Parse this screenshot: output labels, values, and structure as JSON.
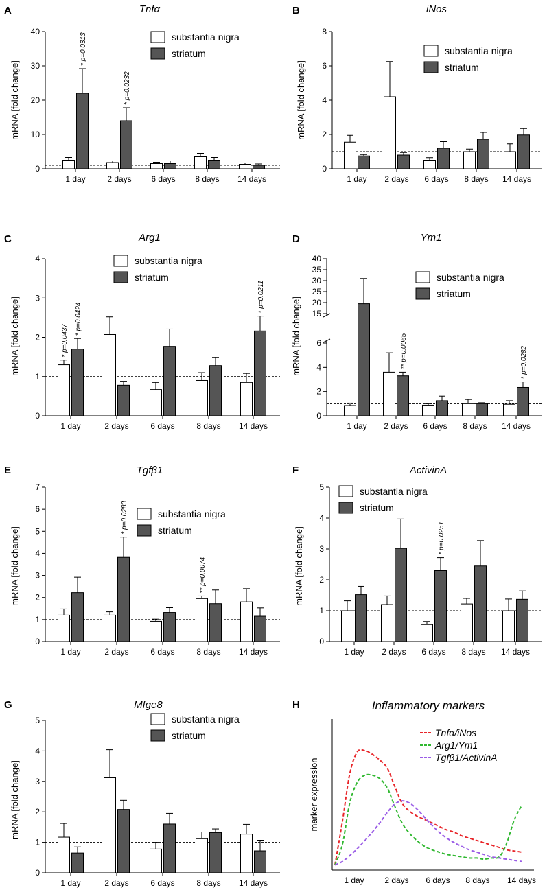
{
  "colors": {
    "sn": "#ffffff",
    "st": "#555555",
    "edge": "#000000"
  },
  "curve_colors": [
    "#e8262a",
    "#30b830",
    "#9a5ce6"
  ],
  "chart_data": [
    {
      "id": "A",
      "type": "bar",
      "title": "Tnfα",
      "ylabel": "mRNA [fold change]",
      "categories": [
        "1 day",
        "2 days",
        "6 days",
        "8 days",
        "14 days"
      ],
      "ylim": [
        0,
        40
      ],
      "yticks": [
        "0",
        "10",
        "20",
        "30",
        "40"
      ],
      "reference": 1,
      "series": [
        {
          "name": "substantia nigra",
          "values": [
            2.5,
            1.8,
            1.5,
            3.5,
            1.3
          ],
          "errors": [
            0.8,
            0.5,
            0.4,
            1.0,
            0.4
          ]
        },
        {
          "name": "striatum",
          "values": [
            22,
            14,
            1.5,
            2.5,
            1.0
          ],
          "errors": [
            7.2,
            3.8,
            0.8,
            0.8,
            0.4
          ]
        }
      ],
      "annotations": [
        {
          "label": "* p=0.0313",
          "category": 0,
          "series": 1
        },
        {
          "label": "* p=0.0232",
          "category": 1,
          "series": 1
        }
      ]
    },
    {
      "id": "B",
      "type": "bar",
      "title": "iNos",
      "ylabel": "mRNA [fold change]",
      "categories": [
        "1 day",
        "2 days",
        "6 days",
        "8 days",
        "14 days"
      ],
      "ylim": [
        0,
        8
      ],
      "yticks": [
        "0",
        "2",
        "4",
        "6",
        "8"
      ],
      "reference": 1,
      "series": [
        {
          "name": "substantia nigra",
          "values": [
            1.55,
            4.2,
            0.5,
            1.0,
            1.0
          ],
          "errors": [
            0.4,
            2.05,
            0.15,
            0.15,
            0.45
          ]
        },
        {
          "name": "striatum",
          "values": [
            0.75,
            0.8,
            1.2,
            1.72,
            1.97
          ],
          "errors": [
            0.08,
            0.15,
            0.38,
            0.4,
            0.38
          ]
        }
      ],
      "annotations": []
    },
    {
      "id": "C",
      "type": "bar",
      "title": "Arg1",
      "ylabel": "mRNA [fold change]",
      "categories": [
        "1 day",
        "2 days",
        "6 days",
        "8 days",
        "14 days"
      ],
      "ylim": [
        0,
        4
      ],
      "yticks": [
        "0",
        "1",
        "2",
        "3",
        "4"
      ],
      "reference": 1,
      "series": [
        {
          "name": "substantia nigra",
          "values": [
            1.3,
            2.07,
            0.67,
            0.9,
            0.85
          ],
          "errors": [
            0.12,
            0.45,
            0.18,
            0.2,
            0.23
          ]
        },
        {
          "name": "striatum",
          "values": [
            1.7,
            0.78,
            1.77,
            1.28,
            2.16
          ],
          "errors": [
            0.27,
            0.1,
            0.44,
            0.2,
            0.38
          ]
        }
      ],
      "annotations": [
        {
          "label": "* p=0.0437",
          "category": 0,
          "series": 0
        },
        {
          "label": "* p=0.0424",
          "category": 0,
          "series": 1
        },
        {
          "label": "* p=0.0211",
          "category": 4,
          "series": 1
        }
      ]
    },
    {
      "id": "D",
      "type": "bar",
      "title": "Ym1",
      "ylabel": "mRNA [fold change]",
      "broken_axis": true,
      "categories": [
        "1 day",
        "2 days",
        "6 days",
        "8 days",
        "14 days"
      ],
      "ylim": [
        0,
        40
      ],
      "yticks": [
        "0",
        "2",
        "4",
        "6",
        "15",
        "20",
        "25",
        "30",
        "35",
        "40"
      ],
      "reference": 1,
      "series": [
        {
          "name": "substantia nigra",
          "values": [
            0.85,
            3.6,
            0.88,
            1.0,
            0.95
          ],
          "errors": [
            0.2,
            1.6,
            0.12,
            0.35,
            0.3
          ]
        },
        {
          "name": "striatum",
          "values": [
            19.5,
            3.3,
            1.25,
            1.0,
            2.35
          ],
          "errors": [
            11.5,
            0.3,
            0.38,
            0.08,
            0.45
          ]
        }
      ],
      "annotations": [
        {
          "label": "** p=0.0065",
          "category": 1,
          "series": 1
        },
        {
          "label": "* p=0.0282",
          "category": 4,
          "series": 1
        }
      ]
    },
    {
      "id": "E",
      "type": "bar",
      "title": "Tgfβ1",
      "ylabel": "mRNA [fold change]",
      "categories": [
        "1 day",
        "2 days",
        "6 days",
        "8 days",
        "14 days"
      ],
      "ylim": [
        0,
        7
      ],
      "yticks": [
        "0",
        "1",
        "2",
        "3",
        "4",
        "5",
        "6",
        "7"
      ],
      "reference": 1,
      "series": [
        {
          "name": "substantia nigra",
          "values": [
            1.2,
            1.2,
            0.92,
            1.95,
            1.8
          ],
          "errors": [
            0.28,
            0.15,
            0.1,
            0.12,
            0.6
          ]
        },
        {
          "name": "striatum",
          "values": [
            2.22,
            3.82,
            1.32,
            1.72,
            1.15
          ],
          "errors": [
            0.7,
            0.92,
            0.22,
            0.62,
            0.38
          ]
        }
      ],
      "annotations": [
        {
          "label": "* p=0.0283",
          "category": 1,
          "series": 1
        },
        {
          "label": "** p=0.0074",
          "category": 3,
          "series": 0
        }
      ]
    },
    {
      "id": "F",
      "type": "bar",
      "title": "ActivinA",
      "ylabel": "mRNA [fold change]",
      "categories": [
        "1 day",
        "2 days",
        "6 days",
        "8 days",
        "14 days"
      ],
      "ylim": [
        0,
        5
      ],
      "yticks": [
        "0",
        "1",
        "2",
        "3",
        "4",
        "5"
      ],
      "reference": 1,
      "series": [
        {
          "name": "substantia nigra",
          "values": [
            1.0,
            1.2,
            0.55,
            1.22,
            1.0
          ],
          "errors": [
            0.32,
            0.28,
            0.1,
            0.18,
            0.38
          ]
        },
        {
          "name": "striatum",
          "values": [
            1.52,
            3.02,
            2.3,
            2.45,
            1.37
          ],
          "errors": [
            0.27,
            0.95,
            0.42,
            0.82,
            0.27
          ]
        }
      ],
      "annotations": [
        {
          "label": "* p=0.0251",
          "category": 2,
          "series": 1
        }
      ]
    },
    {
      "id": "G",
      "type": "bar",
      "title": "Mfge8",
      "ylabel": "mRNA [fold change]",
      "categories": [
        "1 day",
        "2 days",
        "6 days",
        "8 days",
        "14 days"
      ],
      "ylim": [
        0,
        5
      ],
      "yticks": [
        "0",
        "1",
        "2",
        "3",
        "4",
        "5"
      ],
      "reference": 1,
      "series": [
        {
          "name": "substantia nigra",
          "values": [
            1.17,
            3.12,
            0.78,
            1.12,
            1.27
          ],
          "errors": [
            0.45,
            0.92,
            0.22,
            0.22,
            0.32
          ]
        },
        {
          "name": "striatum",
          "values": [
            0.65,
            2.08,
            1.6,
            1.32,
            0.72
          ],
          "errors": [
            0.2,
            0.3,
            0.35,
            0.12,
            0.35
          ]
        }
      ],
      "annotations": []
    },
    {
      "id": "H",
      "type": "line",
      "title": "Inflammatory markers",
      "ylabel": "marker expression",
      "categories": [
        "1 day",
        "2 days",
        "6 days",
        "8 days",
        "14 days"
      ],
      "x": [
        0.0,
        0.17,
        0.33,
        0.5,
        0.67,
        0.83,
        1.0,
        1.17,
        1.33,
        1.5,
        1.67,
        1.83,
        2.0,
        2.17,
        2.33,
        2.5,
        2.67,
        2.83,
        3.0,
        3.17,
        3.33,
        3.5,
        3.67,
        3.83,
        4.0,
        4.17
      ],
      "ylim": [
        0,
        1
      ],
      "series": [
        {
          "name": "Tnfα/iNos",
          "values": [
            0.02,
            0.4,
            0.8,
            0.99,
            1.0,
            0.97,
            0.92,
            0.85,
            0.7,
            0.55,
            0.48,
            0.44,
            0.41,
            0.38,
            0.35,
            0.32,
            0.3,
            0.27,
            0.25,
            0.23,
            0.21,
            0.19,
            0.17,
            0.15,
            0.14,
            0.13
          ]
        },
        {
          "name": "Arg1/Ym1",
          "values": [
            0.02,
            0.2,
            0.55,
            0.73,
            0.79,
            0.79,
            0.76,
            0.68,
            0.53,
            0.38,
            0.29,
            0.23,
            0.18,
            0.15,
            0.13,
            0.11,
            0.1,
            0.09,
            0.08,
            0.08,
            0.07,
            0.08,
            0.09,
            0.2,
            0.4,
            0.53
          ]
        },
        {
          "name": "Tgfβ1/ActivinA",
          "values": [
            0.02,
            0.05,
            0.1,
            0.16,
            0.23,
            0.3,
            0.38,
            0.47,
            0.54,
            0.57,
            0.55,
            0.5,
            0.43,
            0.36,
            0.3,
            0.25,
            0.21,
            0.18,
            0.15,
            0.13,
            0.11,
            0.09,
            0.08,
            0.07,
            0.06,
            0.05
          ]
        }
      ]
    }
  ]
}
